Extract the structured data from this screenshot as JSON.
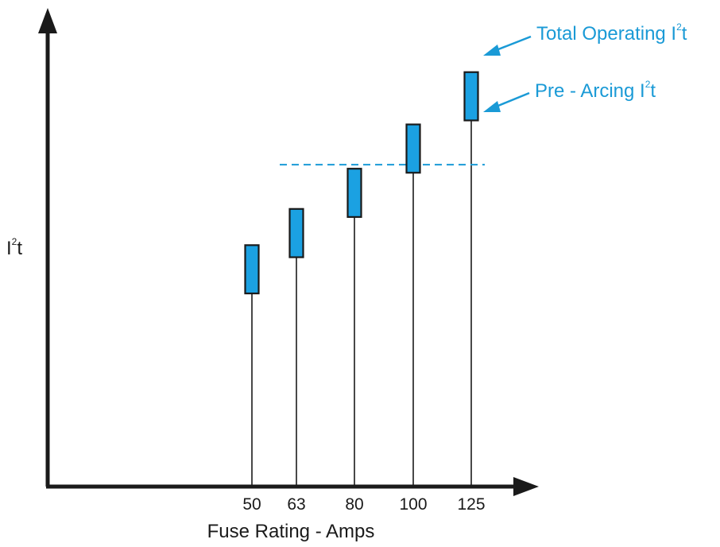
{
  "chart_data": {
    "type": "bar",
    "subtype": "floating-range",
    "title": "",
    "xlabel": "Fuse Rating - Amps",
    "ylabel": "I",
    "ylabel_superscript": "2",
    "ylabel_suffix": "t",
    "categories": [
      "50",
      "63",
      "80",
      "100",
      "125"
    ],
    "x_values": [
      50,
      63,
      80,
      100,
      125
    ],
    "series": [
      {
        "name": "Pre - Arcing I²t",
        "values": [
          0.48,
          0.57,
          0.67,
          0.78,
          0.91
        ]
      },
      {
        "name": "Total Operating I²t",
        "values": [
          0.6,
          0.69,
          0.79,
          0.9,
          1.03
        ]
      }
    ],
    "reference_line": {
      "style": "dashed",
      "value": 0.8
    },
    "ylim": [
      0,
      1.15
    ],
    "y_ticks_shown": false,
    "grid": false,
    "colors": {
      "bar_fill": "#1ba1e2",
      "bar_stroke": "#1a1a1a",
      "annotation": "#1a9ad6",
      "axis": "#1a1a1a"
    },
    "annotations": [
      {
        "text": "Total Operating I",
        "sup": "2",
        "suffix": "t",
        "points_to": "top-of-125-bar"
      },
      {
        "text": "Pre - Arcing I",
        "sup": "2",
        "suffix": "t",
        "points_to": "bottom-of-125-bar"
      }
    ]
  }
}
